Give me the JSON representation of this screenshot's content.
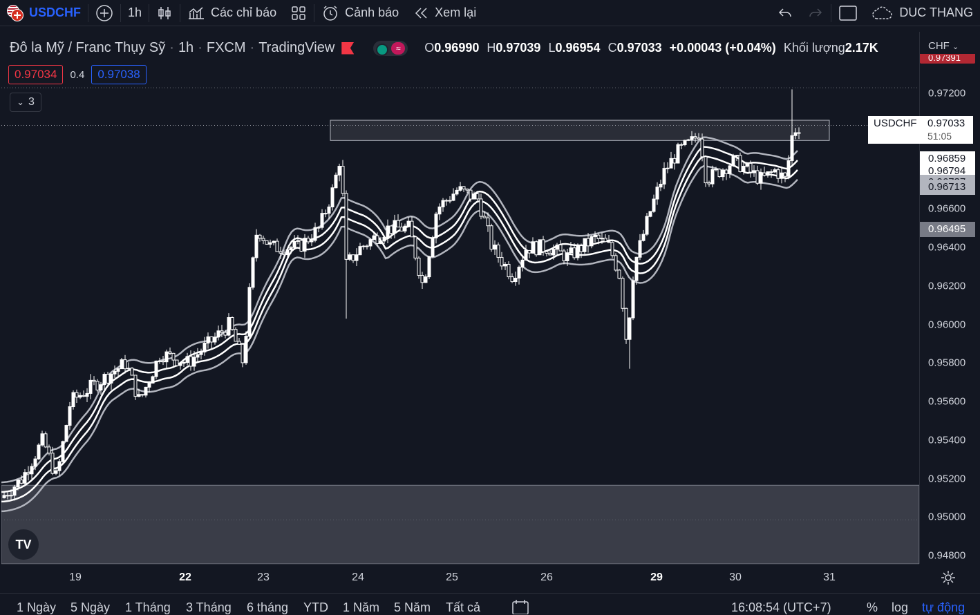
{
  "toolbar": {
    "symbol": "USDCHF",
    "interval": "1h",
    "indicators_label": "Các chỉ báo",
    "alerts_label": "Cảnh báo",
    "replay_label": "Xem lại",
    "user_name": "DUC THANG",
    "icons": [
      "add-symbol-icon",
      "candles-icon",
      "indicators-icon",
      "layout-icon",
      "alert-icon",
      "replay-icon",
      "undo-icon",
      "redo-icon",
      "fullscreen-icon",
      "cloud-icon"
    ]
  },
  "legend": {
    "title": "Đô la Mỹ / Franc Thụy Sỹ",
    "interval": "1h",
    "exchange": "FXCM",
    "source": "TradingView",
    "o_label": "O",
    "open": "0.96990",
    "h_label": "H",
    "high": "0.97039",
    "l_label": "L",
    "low": "0.96954",
    "c_label": "C",
    "close": "0.97033",
    "change": "+0.00043 (+0.04%)",
    "volume_label": "Khối lượng",
    "volume": "2.17K",
    "toggle_label": "≈"
  },
  "quote": {
    "bid": "0.97034",
    "spread": "0.4",
    "ask": "0.97038"
  },
  "indicators_collapse": {
    "count": "3"
  },
  "price_axis": {
    "currency": "CHF",
    "top_partial": "0.97391",
    "ticks": [
      "0.97200",
      "0.96600",
      "0.96400",
      "0.96200",
      "0.96000",
      "0.95800",
      "0.95600",
      "0.95400",
      "0.95200",
      "0.95000",
      "0.94800"
    ],
    "symbol_tag": {
      "name": "USDCHF",
      "price": "0.97033",
      "countdown": "51:05"
    },
    "tags": [
      "0.96859",
      "0.96794",
      "0.96737",
      "0.96713",
      "0.96495"
    ]
  },
  "time_axis": {
    "labels": [
      {
        "text": "19",
        "bold": false
      },
      {
        "text": "22",
        "bold": true
      },
      {
        "text": "23",
        "bold": false
      },
      {
        "text": "24",
        "bold": false
      },
      {
        "text": "25",
        "bold": false
      },
      {
        "text": "26",
        "bold": false
      },
      {
        "text": "29",
        "bold": true
      },
      {
        "text": "30",
        "bold": false
      },
      {
        "text": "31",
        "bold": false
      }
    ]
  },
  "bottom_bar": {
    "ranges": [
      "1 Ngày",
      "5 Ngày",
      "1 Tháng",
      "3 Tháng",
      "6 tháng",
      "YTD",
      "1 Năm",
      "5 Năm",
      "Tất cả"
    ],
    "clock": "16:08:54 (UTC+7)",
    "percent": "%",
    "log": "log",
    "auto": "tự động"
  },
  "watermark": "TV",
  "colors": {
    "bg": "#131722",
    "accent": "#2962ff",
    "bid": "#f23645",
    "ask": "#2962ff",
    "candle": "#ffffff",
    "band": "#b2b5be",
    "zone": "#3a3d48"
  },
  "chart_data": {
    "type": "candlestick",
    "title": "Đô la Mỹ / Franc Thụy Sỹ",
    "ylim": [
      0.9475,
      0.9741
    ],
    "x_labels": [
      "19",
      "22",
      "23",
      "24",
      "25",
      "26",
      "29",
      "30",
      "31"
    ],
    "zones": [
      {
        "from": 0.96955,
        "to": 0.9706
      },
      {
        "from": 0.948,
        "to": 0.95165
      }
    ],
    "close_points": [
      [
        0,
        0.951
      ],
      [
        30,
        0.952
      ],
      [
        60,
        0.954
      ],
      [
        80,
        0.952
      ],
      [
        100,
        0.956
      ],
      [
        140,
        0.957
      ],
      [
        180,
        0.958
      ],
      [
        200,
        0.956
      ],
      [
        230,
        0.9585
      ],
      [
        270,
        0.958
      ],
      [
        300,
        0.959
      ],
      [
        330,
        0.96
      ],
      [
        350,
        0.958
      ],
      [
        360,
        0.962
      ],
      [
        370,
        0.965
      ],
      [
        390,
        0.964
      ],
      [
        430,
        0.964
      ],
      [
        460,
        0.965
      ],
      [
        480,
        0.967
      ],
      [
        492,
        0.969
      ],
      [
        497,
        0.963
      ],
      [
        520,
        0.964
      ],
      [
        560,
        0.965
      ],
      [
        590,
        0.965
      ],
      [
        610,
        0.962
      ],
      [
        630,
        0.966
      ],
      [
        660,
        0.967
      ],
      [
        690,
        0.9665
      ],
      [
        710,
        0.964
      ],
      [
        740,
        0.9625
      ],
      [
        760,
        0.964
      ],
      [
        790,
        0.964
      ],
      [
        820,
        0.9635
      ],
      [
        860,
        0.9645
      ],
      [
        880,
        0.964
      ],
      [
        895,
        0.9625
      ],
      [
        905,
        0.959
      ],
      [
        915,
        0.963
      ],
      [
        940,
        0.966
      ],
      [
        960,
        0.968
      ],
      [
        980,
        0.969
      ],
      [
        1000,
        0.9695
      ],
      [
        1010,
        0.97
      ],
      [
        1020,
        0.9675
      ],
      [
        1040,
        0.968
      ],
      [
        1060,
        0.9685
      ],
      [
        1080,
        0.968
      ],
      [
        1100,
        0.9675
      ],
      [
        1120,
        0.968
      ],
      [
        1135,
        0.9675
      ],
      [
        1145,
        0.97
      ],
      [
        1155,
        0.9703
      ]
    ],
    "bands": {
      "offsets": [
        0.0008,
        0.0003,
        -0.0002,
        -0.0007
      ]
    }
  }
}
